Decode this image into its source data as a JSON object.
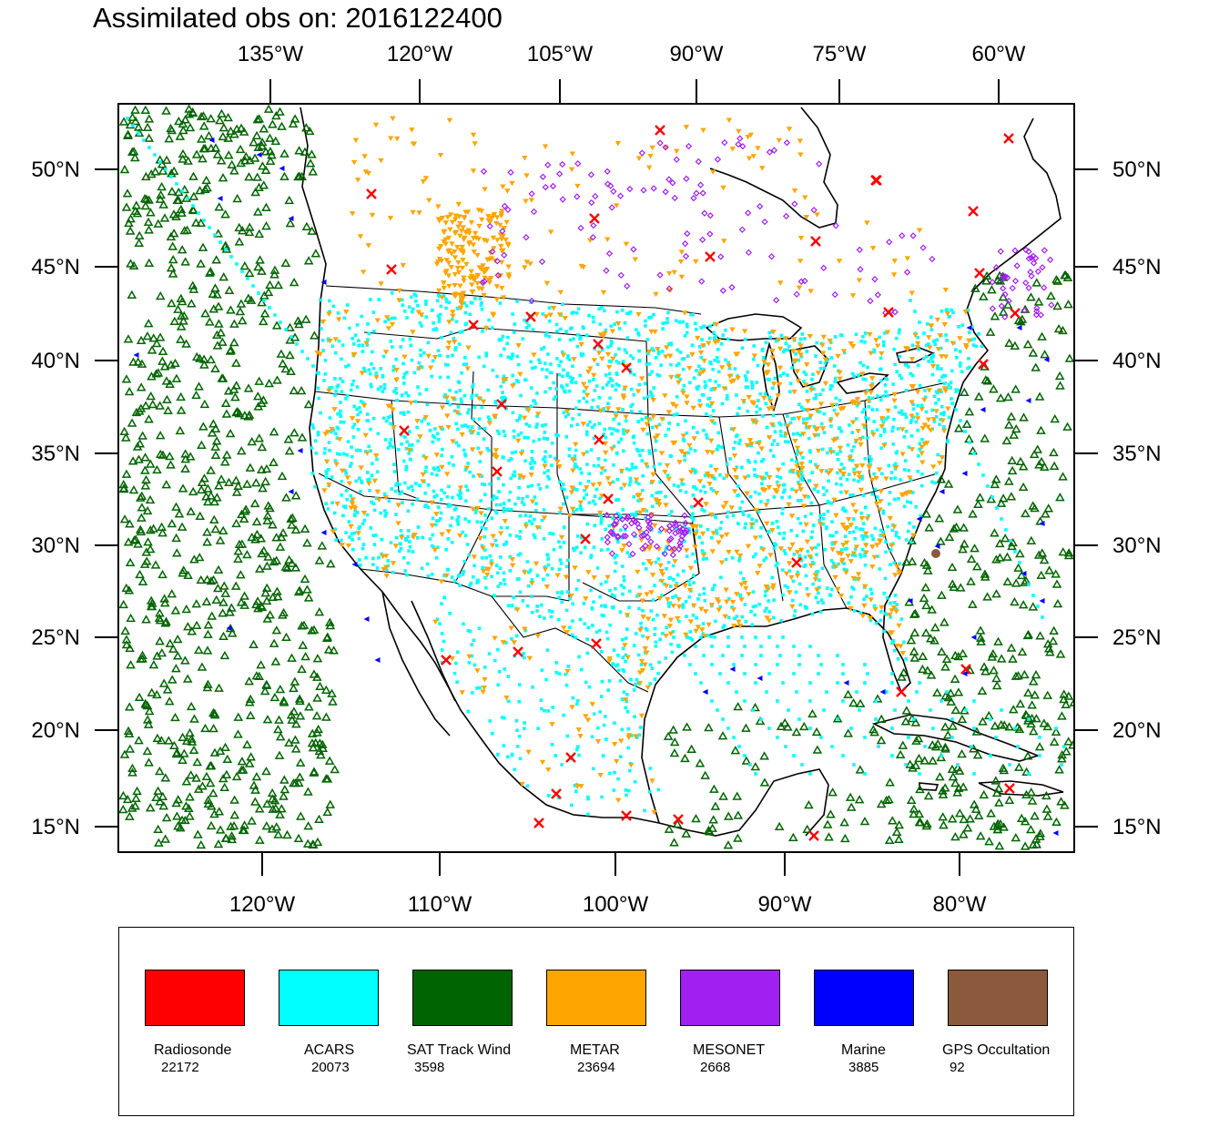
{
  "title": "Assimilated obs on: 2016122400",
  "top_axis": [
    "135°W",
    "120°W",
    "105°W",
    "90°W",
    "75°W",
    "60°W"
  ],
  "bottom_axis": [
    "120°W",
    "110°W",
    "100°W",
    "90°W",
    "80°W"
  ],
  "left_axis": [
    "50°N",
    "45°N",
    "40°N",
    "35°N",
    "30°N",
    "25°N",
    "20°N",
    "15°N"
  ],
  "right_axis": [
    "50°N",
    "45°N",
    "40°N",
    "35°N",
    "30°N",
    "25°N",
    "20°N",
    "15°N"
  ],
  "legend": [
    {
      "name": "Radiosonde",
      "count": "22172",
      "color": "#ff0000"
    },
    {
      "name": "ACARS",
      "count": "20073",
      "color": "#00ffff"
    },
    {
      "name": "SAT Track Wind",
      "count": "3598",
      "color": "#006400"
    },
    {
      "name": "METAR",
      "count": "23694",
      "color": "#ffa500"
    },
    {
      "name": "MESONET",
      "count": "2668",
      "color": "#a020f0"
    },
    {
      "name": "Marine",
      "count": "3885",
      "color": "#0000ff"
    },
    {
      "name": "GPS Occultation",
      "count": "92",
      "color": "#8b5a3c"
    }
  ]
}
